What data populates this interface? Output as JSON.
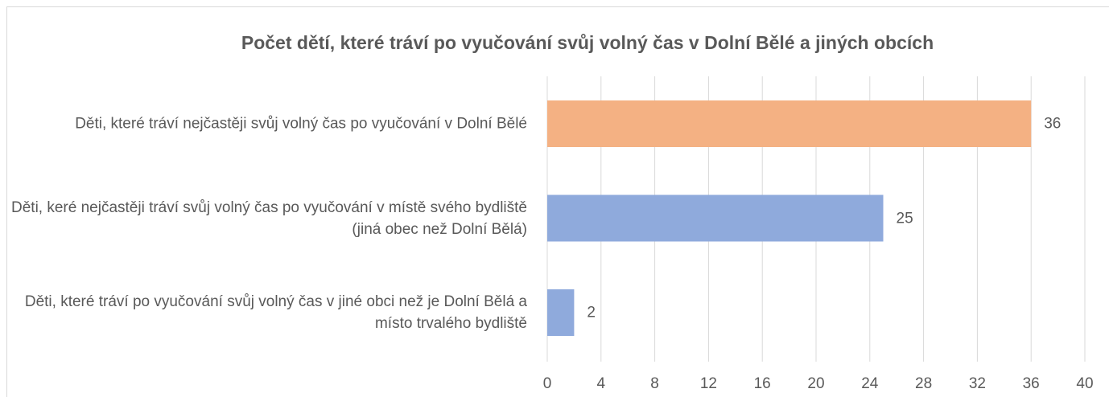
{
  "chart_data": {
    "type": "bar",
    "orientation": "horizontal",
    "title": "Počet dětí, které tráví po vyučování svůj volný čas v Dolní Bělé a jiných obcích",
    "categories": [
      "Děti, které tráví nejčastěji svůj volný čas po vyučování v Dolní Bělé",
      "Děti, keré nejčastěji tráví svůj volný čas po vyučování v místě svého bydliště (jiná obec než Dolní Bělá)",
      "Děti, které tráví po vyučování svůj volný čas v jiné obci než je Dolní Bělá a místo trvalého bydliště"
    ],
    "values": [
      36,
      25,
      2
    ],
    "colors": [
      "#f4b183",
      "#8faadc",
      "#8faadc"
    ],
    "xlim": [
      0,
      40
    ],
    "xticks": [
      0,
      4,
      8,
      12,
      16,
      20,
      24,
      28,
      32,
      36,
      40
    ],
    "grid": true
  }
}
